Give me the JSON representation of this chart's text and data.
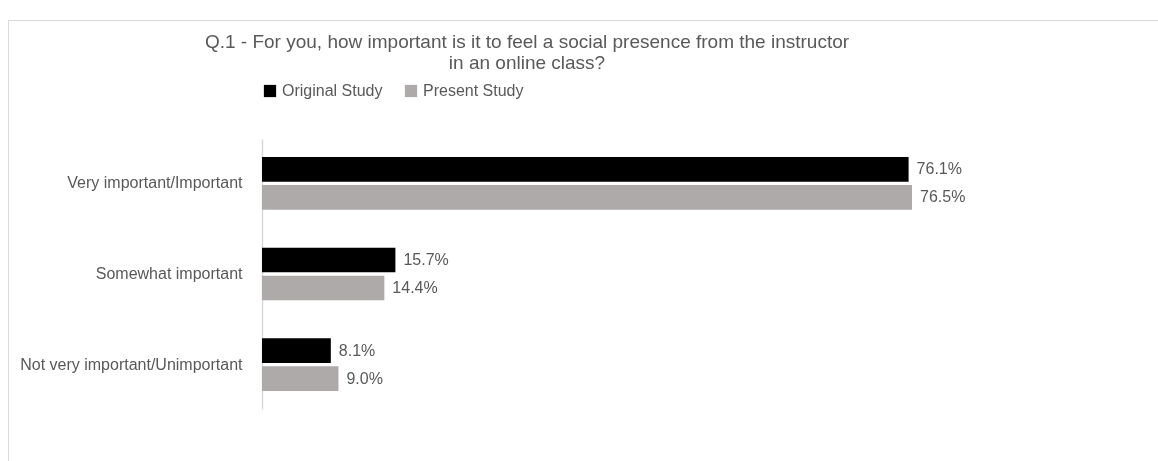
{
  "chart_data": {
    "type": "bar",
    "orientation": "horizontal",
    "title": "Q.1 - For you, how important is it to feel a social presence from the instructor in an online class?",
    "categories": [
      "Very important/Important",
      "Somewhat important",
      "Not very important/Unimportant"
    ],
    "series": [
      {
        "name": "Original Study",
        "color": "#000000",
        "values": [
          76.1,
          15.7,
          8.1
        ],
        "value_labels": [
          "76.1%",
          "15.7%",
          "8.1%"
        ]
      },
      {
        "name": "Present Study",
        "color": "#aeaaaa",
        "values": [
          76.5,
          14.4,
          9.0
        ],
        "value_labels": [
          "76.5%",
          "14.4%",
          "9.0%"
        ]
      }
    ],
    "legend": "top",
    "grid": false
  }
}
